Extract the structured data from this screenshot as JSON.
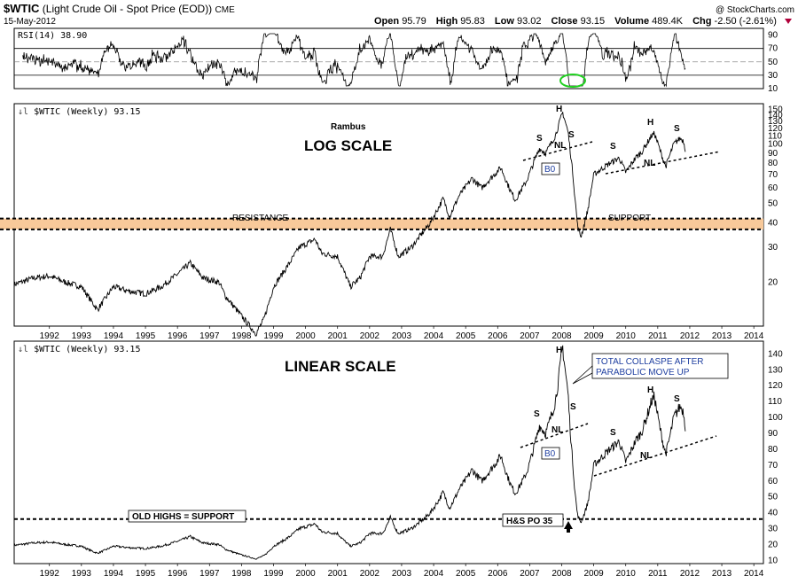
{
  "header": {
    "symbol": "$WTIC",
    "name": "(Light Crude Oil - Spot Price (EOD))",
    "exchange": "CME",
    "date": "15-May-2012",
    "open_label": "Open",
    "open": "95.79",
    "high_label": "High",
    "high": "95.83",
    "low_label": "Low",
    "low": "93.02",
    "close_label": "Close",
    "close": "93.15",
    "volume_label": "Volume",
    "volume": "489.4K",
    "chg_label": "Chg",
    "chg": "-2.50 (-2.61%)",
    "credit": "@ StockCharts.com"
  },
  "colors": {
    "band": "#f8c99a",
    "green_circle": "#21d021",
    "price": "#000000",
    "label_blue": "#1f3fa0"
  },
  "chart_data": [
    {
      "type": "line",
      "title": "RSI(14) 38.90",
      "ylim": [
        10,
        100
      ],
      "yticks": [
        10,
        30,
        50,
        70,
        90
      ],
      "reference_lines": [
        30,
        70
      ],
      "mid_line": 50
    },
    {
      "type": "line",
      "legend": "$WTIC (Weekly) 93.15",
      "scale": "log",
      "ylim": [
        12,
        160
      ],
      "yticks": [
        20,
        30,
        40,
        50,
        60,
        70,
        80,
        90,
        100,
        110,
        120,
        130,
        140,
        150
      ],
      "x_ticks": [
        "1992",
        "1993",
        "1994",
        "1995",
        "1996",
        "1997",
        "1998",
        "1999",
        "2000",
        "2001",
        "2002",
        "2003",
        "2004",
        "2005",
        "2006",
        "2007",
        "2008",
        "2009",
        "2010",
        "2011",
        "2012",
        "2013",
        "2014"
      ],
      "annotations": {
        "author": "Rambus",
        "scale_label": "LOG SCALE",
        "resistance": "RESISTANCE",
        "support": "SUPPORT",
        "bo": "B0",
        "nl": "NL",
        "s": "S",
        "h": "H"
      },
      "band": [
        37,
        42
      ]
    },
    {
      "type": "line",
      "legend": "$WTIC (Weekly) 93.15",
      "scale": "linear",
      "ylim": [
        8,
        148
      ],
      "yticks": [
        10,
        20,
        30,
        40,
        50,
        60,
        70,
        80,
        90,
        100,
        110,
        120,
        130,
        140
      ],
      "x_ticks": [
        "1992",
        "1993",
        "1994",
        "1995",
        "1996",
        "1997",
        "1998",
        "1999",
        "2000",
        "2001",
        "2002",
        "2003",
        "2004",
        "2005",
        "2006",
        "2007",
        "2008",
        "2009",
        "2010",
        "2011",
        "2012",
        "2013",
        "2014"
      ],
      "annotations": {
        "scale_label": "LINEAR SCALE",
        "old_highs": "OLD HIGHS = SUPPORT",
        "hs_po": "H&S PO 35",
        "collapse_line1": "TOTAL COLLASPE AFTER",
        "collapse_line2": "PARABOLIC MOVE UP",
        "bo": "B0",
        "nl": "NL",
        "s": "S",
        "h": "H"
      },
      "support_level": 36
    }
  ],
  "price_anchors": [
    [
      1991.4,
      19.5
    ],
    [
      1992.0,
      21
    ],
    [
      1992.5,
      21.5
    ],
    [
      1993.0,
      20
    ],
    [
      1993.5,
      19
    ],
    [
      1994.0,
      14.5
    ],
    [
      1994.5,
      19
    ],
    [
      1995.0,
      18
    ],
    [
      1995.5,
      17.5
    ],
    [
      1996.0,
      19
    ],
    [
      1996.5,
      22
    ],
    [
      1996.9,
      25
    ],
    [
      1997.3,
      21
    ],
    [
      1997.8,
      20
    ],
    [
      1998.0,
      17
    ],
    [
      1998.5,
      13.5
    ],
    [
      1998.95,
      11
    ],
    [
      1999.2,
      13
    ],
    [
      1999.5,
      19
    ],
    [
      2000.0,
      25
    ],
    [
      2000.3,
      30
    ],
    [
      2000.8,
      33
    ],
    [
      2001.0,
      28
    ],
    [
      2001.5,
      27
    ],
    [
      2001.9,
      19
    ],
    [
      2002.2,
      21
    ],
    [
      2002.5,
      27
    ],
    [
      2002.9,
      27
    ],
    [
      2003.15,
      37
    ],
    [
      2003.4,
      27
    ],
    [
      2003.8,
      30
    ],
    [
      2004.0,
      33
    ],
    [
      2004.4,
      40
    ],
    [
      2004.8,
      53
    ],
    [
      2005.0,
      43
    ],
    [
      2005.3,
      55
    ],
    [
      2005.7,
      67
    ],
    [
      2006.0,
      60
    ],
    [
      2006.6,
      76
    ],
    [
      2006.9,
      58
    ],
    [
      2007.05,
      52
    ],
    [
      2007.4,
      65
    ],
    [
      2007.8,
      95
    ],
    [
      2008.0,
      90
    ],
    [
      2008.3,
      110
    ],
    [
      2008.53,
      145
    ],
    [
      2008.7,
      115
    ],
    [
      2008.85,
      70
    ],
    [
      2009.0,
      38
    ],
    [
      2009.1,
      34
    ],
    [
      2009.3,
      45
    ],
    [
      2009.5,
      70
    ],
    [
      2009.8,
      76
    ],
    [
      2010.0,
      80
    ],
    [
      2010.3,
      85
    ],
    [
      2010.5,
      72
    ],
    [
      2010.8,
      85
    ],
    [
      2011.0,
      91
    ],
    [
      2011.3,
      110
    ],
    [
      2011.4,
      113
    ],
    [
      2011.6,
      90
    ],
    [
      2011.75,
      77
    ],
    [
      2012.0,
      100
    ],
    [
      2012.2,
      107
    ],
    [
      2012.3,
      104
    ],
    [
      2012.37,
      93
    ]
  ]
}
